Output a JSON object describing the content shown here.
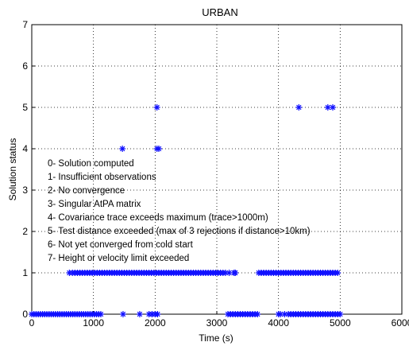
{
  "chart_data": {
    "type": "scatter",
    "title": "URBAN",
    "xlabel": "Time (s)",
    "ylabel": "Solution status",
    "xlim": [
      0,
      6000
    ],
    "ylim": [
      0,
      7
    ],
    "xticks": [
      "0",
      "1000",
      "2000",
      "3000",
      "4000",
      "5000",
      "6000"
    ],
    "yticks": [
      "0",
      "1",
      "2",
      "3",
      "4",
      "5",
      "6",
      "7"
    ],
    "grid": true,
    "marker": "*",
    "marker_color": "#1010ff",
    "series": [
      {
        "y": 0,
        "x": [
          0,
          35,
          70,
          105,
          140,
          175,
          210,
          245,
          280,
          315,
          350,
          385,
          420,
          455,
          490,
          525,
          560,
          595,
          630,
          665,
          700,
          735,
          770,
          805,
          840,
          875,
          910,
          945,
          980,
          1015,
          1050,
          1085,
          1120,
          1480,
          1750,
          1900,
          1950,
          2000,
          2040,
          3180,
          3220,
          3260,
          3300,
          3340,
          3380,
          3420,
          3460,
          3500,
          3540,
          3580,
          3620,
          3660,
          4000,
          4030,
          4100,
          4160,
          4200,
          4240,
          4280,
          4320,
          4360,
          4400,
          4440,
          4480,
          4520,
          4560,
          4600,
          4640,
          4680,
          4720,
          4760,
          4800,
          4840,
          4880,
          4920,
          4960,
          5000
        ]
      },
      {
        "y": 1,
        "x": [
          610,
          660,
          700,
          740,
          780,
          820,
          860,
          900,
          940,
          980,
          1020,
          1060,
          1100,
          1140,
          1180,
          1220,
          1260,
          1300,
          1340,
          1380,
          1420,
          1460,
          1500,
          1540,
          1580,
          1620,
          1660,
          1700,
          1740,
          1780,
          1820,
          1860,
          1900,
          1940,
          1980,
          2020,
          2060,
          2100,
          2140,
          2180,
          2220,
          2260,
          2300,
          2340,
          2380,
          2420,
          2460,
          2500,
          2540,
          2580,
          2620,
          2660,
          2700,
          2740,
          2780,
          2820,
          2860,
          2900,
          2940,
          2980,
          3020,
          3060,
          3100,
          3140,
          3200,
          3280,
          3300,
          3680,
          3720,
          3760,
          3800,
          3840,
          3880,
          3920,
          3960,
          4000,
          4040,
          4080,
          4120,
          4160,
          4200,
          4240,
          4280,
          4320,
          4360,
          4400,
          4440,
          4480,
          4520,
          4560,
          4600,
          4640,
          4680,
          4720,
          4760,
          4800,
          4840,
          4880,
          4920,
          4960
        ]
      },
      {
        "y": 4,
        "x": [
          1470,
          2030,
          2060
        ]
      },
      {
        "y": 5,
        "x": [
          2030,
          4330,
          4800,
          4880
        ]
      }
    ],
    "annotations": [
      "0- Solution computed",
      "1- Insufficient observations",
      "2- No convergence",
      "3- Singular AtPA matrix",
      "4- Covariance trace exceeds maximum (trace>1000m)",
      "5- Test distance exceeded (max of 3 rejections if distance>10km)",
      "6- Not yet converged from cold start",
      "7- Height or velocity limit exceeded"
    ]
  }
}
